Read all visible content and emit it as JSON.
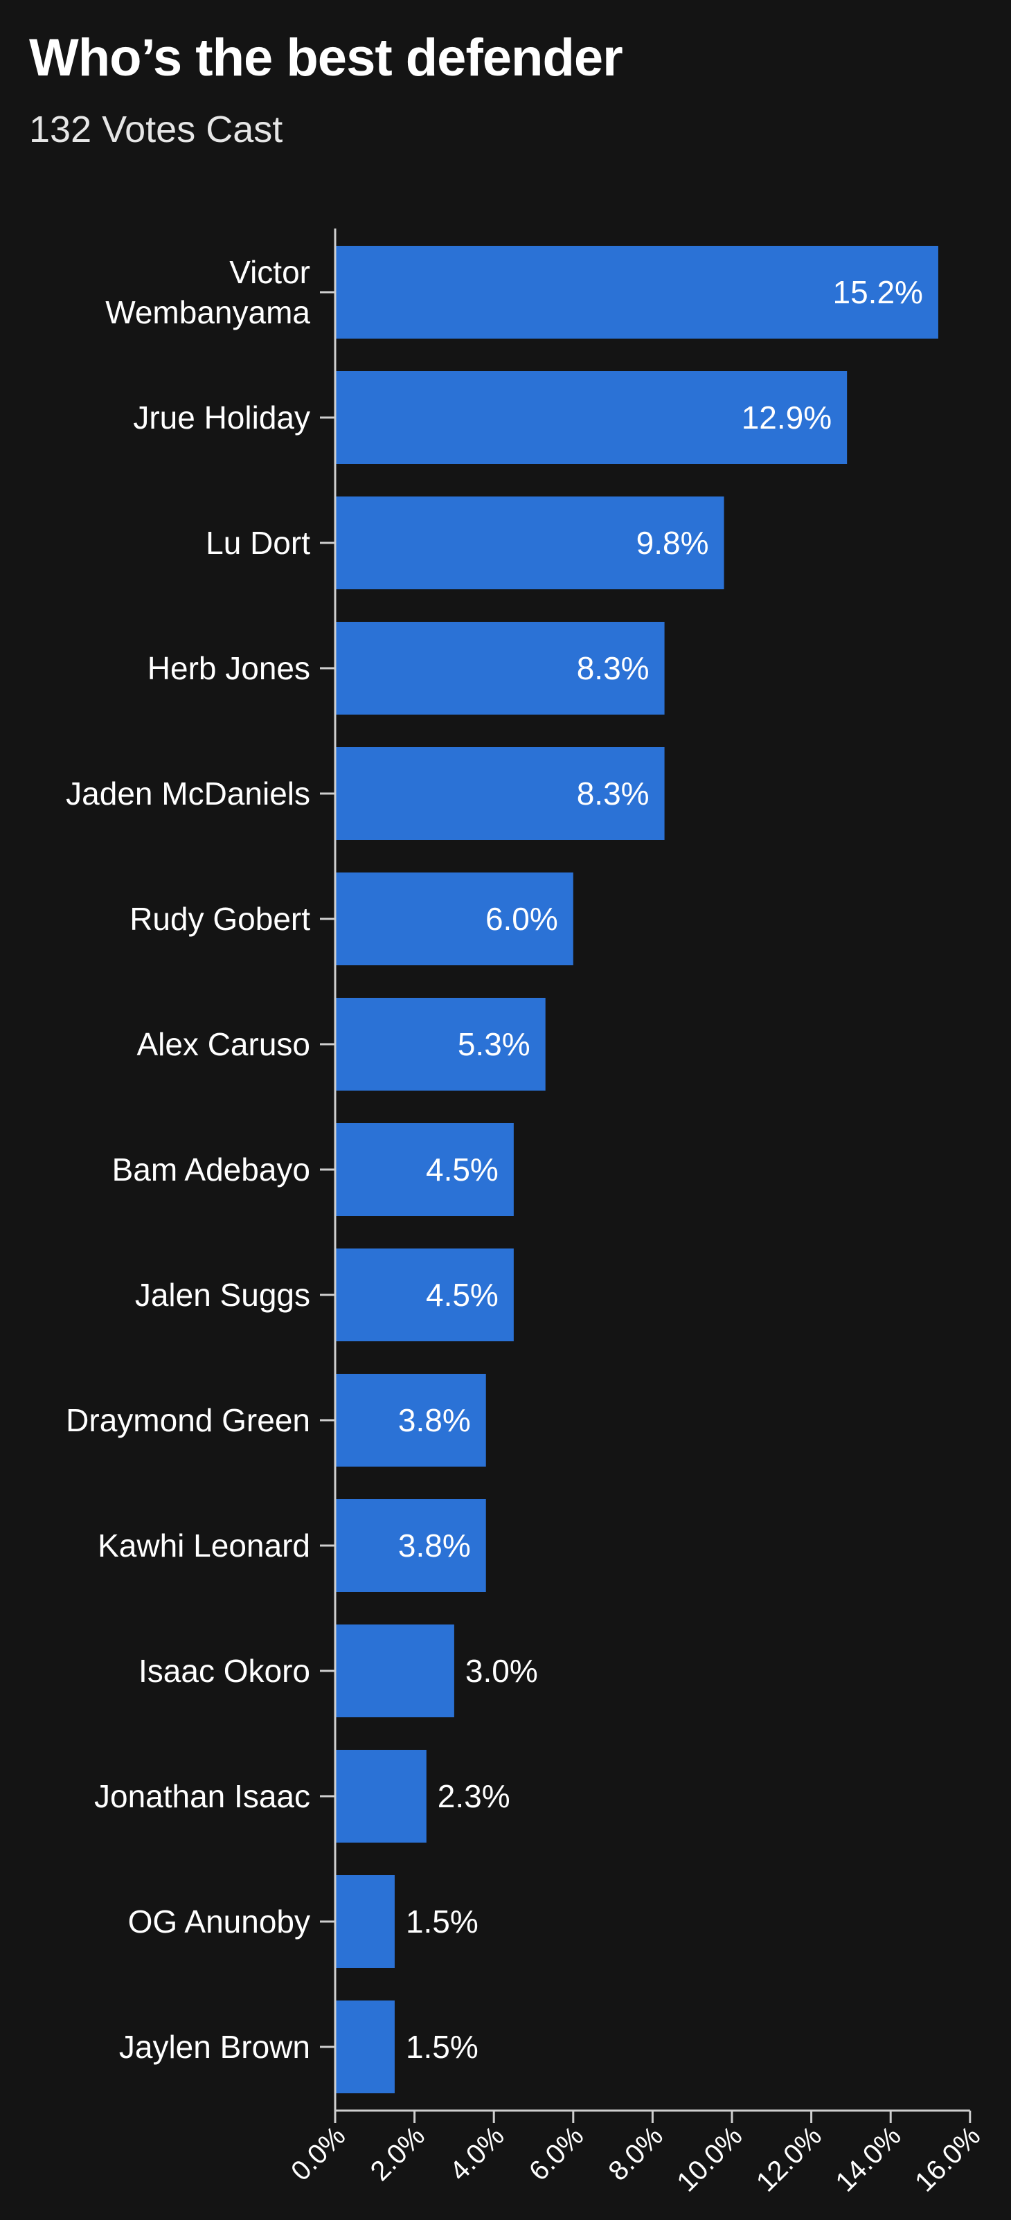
{
  "header": {
    "title": "Who’s the best defender",
    "subtitle": "132 Votes Cast"
  },
  "colors": {
    "background": "#141414",
    "bar": "#2b72d6",
    "text": "#ffffff",
    "axis": "#cfcfcf"
  },
  "chart_data": {
    "type": "bar",
    "orientation": "horizontal",
    "title": "Who’s the best defender",
    "subtitle": "132 Votes Cast",
    "categories": [
      [
        "Victor",
        "Wembanyama"
      ],
      [
        "Jrue Holiday"
      ],
      [
        "Lu Dort"
      ],
      [
        "Herb Jones"
      ],
      [
        "Jaden McDaniels"
      ],
      [
        "Rudy Gobert"
      ],
      [
        "Alex Caruso"
      ],
      [
        "Bam Adebayo"
      ],
      [
        "Jalen Suggs"
      ],
      [
        "Draymond Green"
      ],
      [
        "Kawhi Leonard"
      ],
      [
        "Isaac Okoro"
      ],
      [
        "Jonathan Isaac"
      ],
      [
        "OG Anunoby"
      ],
      [
        "Jaylen Brown"
      ]
    ],
    "values": [
      15.2,
      12.9,
      9.8,
      8.3,
      8.3,
      6.0,
      5.3,
      4.5,
      4.5,
      3.8,
      3.8,
      3.0,
      2.3,
      1.5,
      1.5
    ],
    "value_labels": [
      "15.2%",
      "12.9%",
      "9.8%",
      "8.3%",
      "8.3%",
      "6.0%",
      "5.3%",
      "4.5%",
      "4.5%",
      "3.8%",
      "3.8%",
      "3.0%",
      "2.3%",
      "1.5%",
      "1.5%"
    ],
    "xlim": [
      0,
      16
    ],
    "x_ticks": [
      0,
      2,
      4,
      6,
      8,
      10,
      12,
      14,
      16
    ],
    "x_tick_labels": [
      "0.0%",
      "2.0%",
      "4.0%",
      "6.0%",
      "8.0%",
      "10.0%",
      "12.0%",
      "14.0%",
      "16.0%"
    ],
    "grid": false,
    "legend": "none"
  }
}
